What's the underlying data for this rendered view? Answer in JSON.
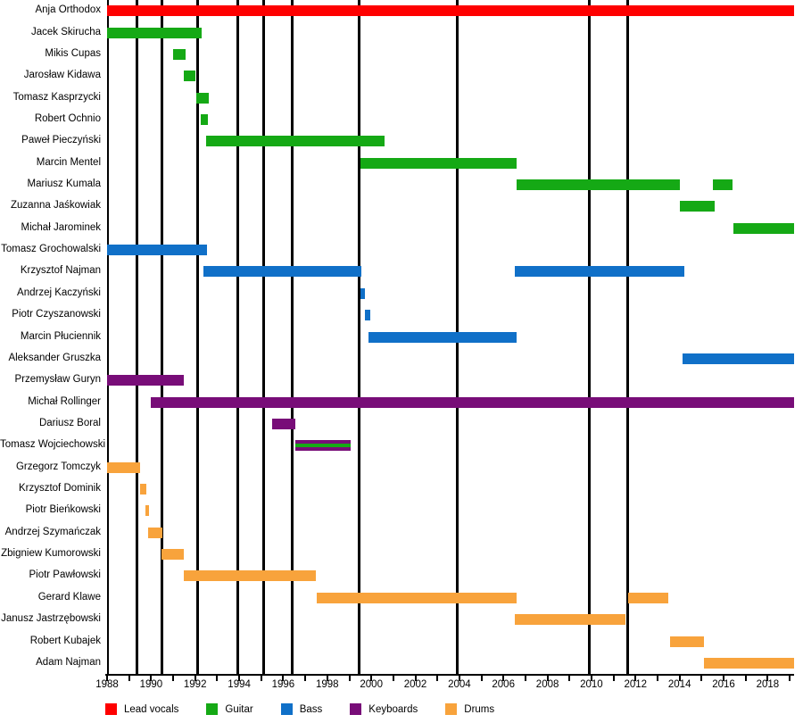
{
  "chart_data": {
    "type": "timeline",
    "title": "",
    "x_axis": {
      "start_year": 1988,
      "end_year": 2019.2,
      "major_tick_labels": [
        "1988",
        "1990",
        "1992",
        "1994",
        "1996",
        "1998",
        "2000",
        "2002",
        "2004",
        "2006",
        "2008",
        "2010",
        "2012",
        "2014",
        "2016",
        "2018"
      ],
      "major_step": 2,
      "minor_step": 1,
      "minor_tick_first": 1988,
      "minor_tick_last": 2019
    },
    "legend": [
      {
        "label": "Lead vocals",
        "color": "#fe0000"
      },
      {
        "label": "Guitar",
        "color": "#15a915"
      },
      {
        "label": "Bass",
        "color": "#1070c8"
      },
      {
        "label": "Keyboards",
        "color": "#780d78"
      },
      {
        "label": "Drums",
        "color": "#f8a33c"
      }
    ],
    "event_lines": [
      1989.35,
      1990.5,
      1992.13,
      1993.94,
      1995.09,
      1996.39,
      1999.43,
      2003.9,
      2009.88,
      2011.64
    ],
    "members": [
      {
        "name": "Anja Orthodox",
        "segments": [
          {
            "role": "Lead vocals",
            "start": 1988.0,
            "end": 2019.2
          }
        ]
      },
      {
        "name": "Jacek Skirucha",
        "segments": [
          {
            "role": "Guitar",
            "start": 1988.0,
            "end": 1992.3
          }
        ]
      },
      {
        "name": "Mikis Cupas",
        "segments": [
          {
            "role": "Guitar",
            "start": 1991.0,
            "end": 1991.55
          }
        ]
      },
      {
        "name": "Jarosław Kidawa",
        "segments": [
          {
            "role": "Guitar",
            "start": 1991.5,
            "end": 1992.0
          }
        ]
      },
      {
        "name": "Tomasz Kasprzycki",
        "segments": [
          {
            "role": "Guitar",
            "start": 1992.05,
            "end": 1992.6
          }
        ]
      },
      {
        "name": "Robert Ochnio",
        "segments": [
          {
            "role": "Guitar",
            "start": 1992.25,
            "end": 1992.6
          }
        ]
      },
      {
        "name": "Paweł Pieczyński",
        "segments": [
          {
            "role": "Guitar",
            "start": 1992.5,
            "end": 2000.6
          }
        ]
      },
      {
        "name": "Marcin Mentel",
        "segments": [
          {
            "role": "Guitar",
            "start": 1999.5,
            "end": 2006.6
          }
        ]
      },
      {
        "name": "Mariusz Kumala",
        "segments": [
          {
            "role": "Guitar",
            "start": 2006.6,
            "end": 2014.0
          },
          {
            "role": "Guitar",
            "start": 2015.5,
            "end": 2016.4
          }
        ]
      },
      {
        "name": "Zuzanna Jaśkowiak",
        "segments": [
          {
            "role": "Guitar",
            "start": 2014.0,
            "end": 2015.6
          }
        ]
      },
      {
        "name": "Michał Jarominek",
        "segments": [
          {
            "role": "Guitar",
            "start": 2016.45,
            "end": 2019.2
          }
        ]
      },
      {
        "name": "Tomasz Grochowalski",
        "segments": [
          {
            "role": "Bass",
            "start": 1988.0,
            "end": 1992.55
          }
        ]
      },
      {
        "name": "Krzysztof Najman",
        "segments": [
          {
            "role": "Bass",
            "start": 1992.37,
            "end": 1999.55
          },
          {
            "role": "Bass",
            "start": 2006.5,
            "end": 2014.2
          }
        ]
      },
      {
        "name": "Andrzej Kaczyński",
        "segments": [
          {
            "role": "Bass",
            "start": 1999.5,
            "end": 1999.72
          }
        ]
      },
      {
        "name": "Piotr Czyszanowski",
        "segments": [
          {
            "role": "Bass",
            "start": 1999.7,
            "end": 1999.95
          }
        ]
      },
      {
        "name": "Marcin Płuciennik",
        "segments": [
          {
            "role": "Bass",
            "start": 1999.85,
            "end": 2006.6
          }
        ]
      },
      {
        "name": "Aleksander Gruszka",
        "segments": [
          {
            "role": "Bass",
            "start": 2014.15,
            "end": 2019.2
          }
        ]
      },
      {
        "name": "Przemysław Guryn",
        "segments": [
          {
            "role": "Keyboards",
            "start": 1988.0,
            "end": 1991.5
          }
        ]
      },
      {
        "name": "Michał Rollinger",
        "segments": [
          {
            "role": "Keyboards",
            "start": 1990.0,
            "end": 2019.2
          }
        ]
      },
      {
        "name": "Dariusz Boral",
        "segments": [
          {
            "role": "Keyboards",
            "start": 1995.5,
            "end": 1996.55
          }
        ]
      },
      {
        "name": "Tomasz Wojciechowski",
        "segments": [
          {
            "role": "Keyboards",
            "start": 1996.55,
            "end": 1999.05,
            "stripe_role": "Guitar"
          }
        ]
      },
      {
        "name": "Grzegorz Tomczyk",
        "segments": [
          {
            "role": "Drums",
            "start": 1988.0,
            "end": 1989.5
          }
        ]
      },
      {
        "name": "Krzysztof Dominik",
        "segments": [
          {
            "role": "Drums",
            "start": 1989.5,
            "end": 1989.8
          }
        ]
      },
      {
        "name": "Piotr Bieńkowski",
        "segments": [
          {
            "role": "Drums",
            "start": 1989.75,
            "end": 1989.9
          }
        ]
      },
      {
        "name": "Andrzej Szymańczak",
        "segments": [
          {
            "role": "Drums",
            "start": 1989.85,
            "end": 1990.5
          }
        ]
      },
      {
        "name": "Zbigniew Kumorowski",
        "segments": [
          {
            "role": "Drums",
            "start": 1990.45,
            "end": 1991.5
          }
        ]
      },
      {
        "name": "Piotr Pawłowski",
        "segments": [
          {
            "role": "Drums",
            "start": 1991.5,
            "end": 1997.5
          }
        ]
      },
      {
        "name": "Gerard Klawe",
        "segments": [
          {
            "role": "Drums",
            "start": 1997.5,
            "end": 2006.6
          },
          {
            "role": "Drums",
            "start": 2011.65,
            "end": 2013.5
          }
        ]
      },
      {
        "name": "Janusz Jastrzębowski",
        "segments": [
          {
            "role": "Drums",
            "start": 2006.5,
            "end": 2011.55
          }
        ]
      },
      {
        "name": "Robert Kubajek",
        "segments": [
          {
            "role": "Drums",
            "start": 2013.55,
            "end": 2015.1
          }
        ]
      },
      {
        "name": "Adam Najman",
        "segments": [
          {
            "role": "Drums",
            "start": 2015.1,
            "end": 2019.2
          }
        ]
      }
    ]
  }
}
